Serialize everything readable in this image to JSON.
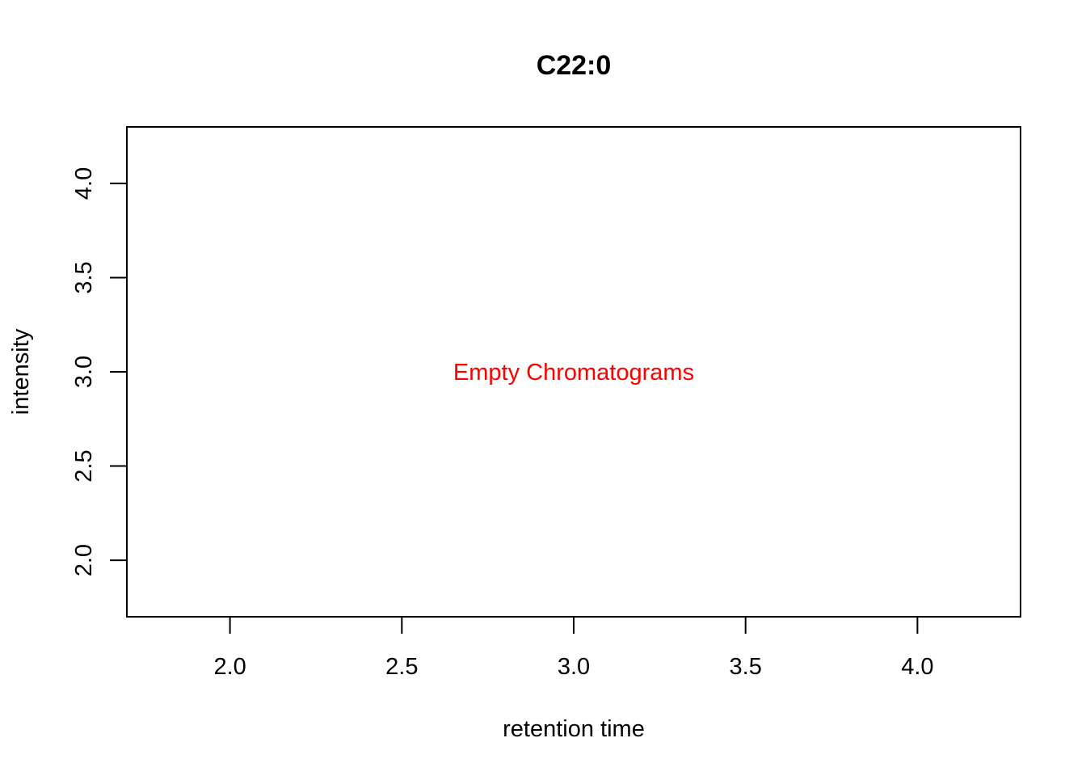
{
  "chart_data": {
    "type": "line",
    "title": "C22:0",
    "xlabel": "retention time",
    "ylabel": "intensity",
    "xlim": [
      1.7,
      4.3
    ],
    "ylim": [
      1.7,
      4.3
    ],
    "x_ticks": [
      2.0,
      2.5,
      3.0,
      3.5,
      4.0
    ],
    "x_tick_labels": [
      "2.0",
      "2.5",
      "3.0",
      "3.5",
      "4.0"
    ],
    "y_ticks": [
      2.0,
      2.5,
      3.0,
      3.5,
      4.0
    ],
    "y_tick_labels": [
      "2.0",
      "2.5",
      "3.0",
      "3.5",
      "4.0"
    ],
    "series": [],
    "grid": false,
    "annotations": [
      {
        "text": "Empty Chromatograms",
        "x": 3.0,
        "y": 3.0,
        "color": "#ff0000"
      }
    ]
  }
}
